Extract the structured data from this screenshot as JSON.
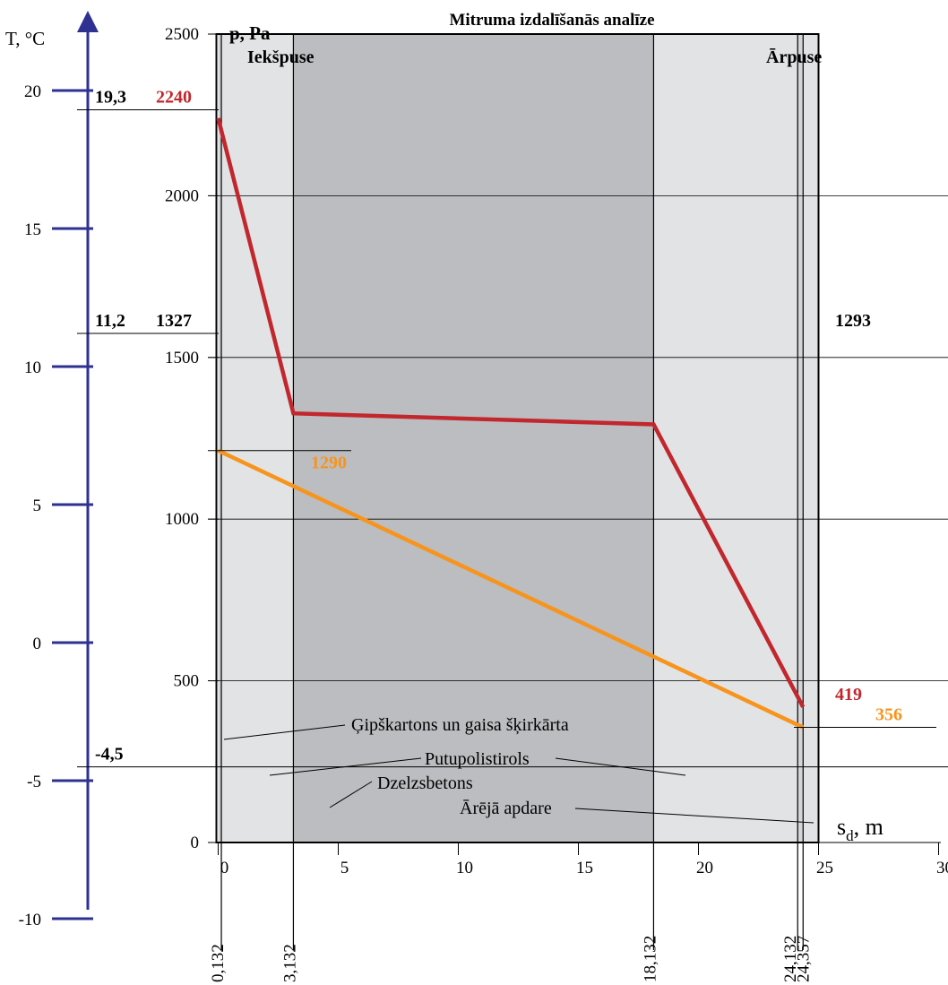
{
  "chart_data": {
    "type": "line",
    "title": "Mitruma izdalīšanās analīze",
    "side_labels": {
      "inside": "Iekšpuse",
      "outside": "Ārpuse"
    },
    "axes": {
      "pressure": {
        "label": "p, Pa",
        "ticks": [
          0,
          500,
          1000,
          1500,
          2000,
          2500
        ],
        "range": [
          0,
          2500
        ]
      },
      "temperature": {
        "label": "T, °C",
        "ticks": [
          "20",
          "15",
          "10",
          "5",
          "0",
          "-5",
          "-10"
        ],
        "tick_values": [
          20,
          15,
          10,
          5,
          0,
          -5,
          -10
        ]
      },
      "x": {
        "label_main": "s",
        "label_sub": "d",
        "label_unit": ", m",
        "ticks": [
          0,
          5,
          10,
          15,
          20,
          25,
          30
        ],
        "range": [
          0,
          30
        ]
      }
    },
    "layer_boundaries": [
      "0,132",
      "3,132",
      "18,132",
      "24,132",
      "24,357"
    ],
    "layer_boundary_values": [
      0.132,
      3.132,
      18.132,
      24.132,
      24.357
    ],
    "layers": [
      {
        "name": "Ģipškartons un gaisa šķirkārta",
        "from": 0,
        "to": 0.132,
        "fill": "#d4d5d7"
      },
      {
        "name": "Putupolistirols",
        "from": 0.132,
        "to": 3.132,
        "fill": "#e2e3e5"
      },
      {
        "name": "Dzelzsbetons",
        "from": 3.132,
        "to": 18.132,
        "fill": "#bcbdc0"
      },
      {
        "name": "Putupolistirols",
        "from": 18.132,
        "to": 24.132,
        "fill": "#e2e3e5"
      },
      {
        "name": "Ārējā apdare",
        "from": 24.132,
        "to": 24.357,
        "fill": "#d4d5d7"
      }
    ],
    "series": [
      {
        "color": "#c1272d",
        "x": [
          0,
          3.132,
          18.132,
          24.357
        ],
        "y": [
          2240,
          1327,
          1293,
          419
        ]
      },
      {
        "color": "#f7941d",
        "x": [
          0,
          24.357
        ],
        "y": [
          1212,
          356
        ]
      }
    ],
    "annotations": {
      "temp_marks": [
        "19,3",
        "11,2",
        "-4,5"
      ],
      "pressure_values": [
        "2240",
        "1327",
        "1293",
        "1290",
        "419",
        "356"
      ]
    },
    "colors": {
      "axis_blue": "#2e3192",
      "red": "#c1272d",
      "orange": "#f7941d"
    }
  }
}
